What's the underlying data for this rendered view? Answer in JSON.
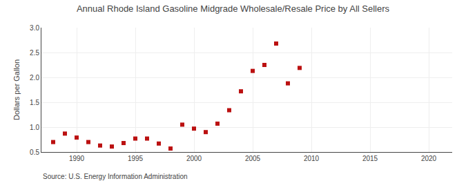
{
  "chart_data": {
    "type": "scatter",
    "title": "Annual Rhode Island Gasoline Midgrade Wholesale/Resale Price by All Sellers",
    "ylabel": "Dollars per Gallon",
    "annotations": [
      "Source: U.S. Energy Information Administration"
    ],
    "x": [
      1988,
      1989,
      1990,
      1991,
      1992,
      1993,
      1994,
      1995,
      1996,
      1997,
      1998,
      1999,
      2000,
      2001,
      2002,
      2003,
      2004,
      2005,
      2006,
      2007,
      2008,
      2009
    ],
    "values": [
      0.7,
      0.87,
      0.79,
      0.7,
      0.63,
      0.61,
      0.68,
      0.77,
      0.77,
      0.67,
      0.57,
      1.05,
      0.97,
      0.9,
      1.07,
      1.34,
      1.72,
      2.13,
      2.25,
      2.68,
      1.88,
      2.19
    ],
    "color": "#bb1111",
    "marker": "square",
    "xlim": [
      1987,
      2022
    ],
    "xticks": [
      1990,
      1995,
      2000,
      2005,
      2010,
      2015,
      2020
    ],
    "ylim": [
      0.5,
      3.0
    ],
    "yticks": [
      0.5,
      {
        "value": 1.0,
        "label": "1.0"
      },
      1.5,
      {
        "value": 2.0,
        "label": "2.0"
      },
      2.5,
      {
        "value": 3.0,
        "label": "3.0"
      }
    ],
    "grid": true
  }
}
